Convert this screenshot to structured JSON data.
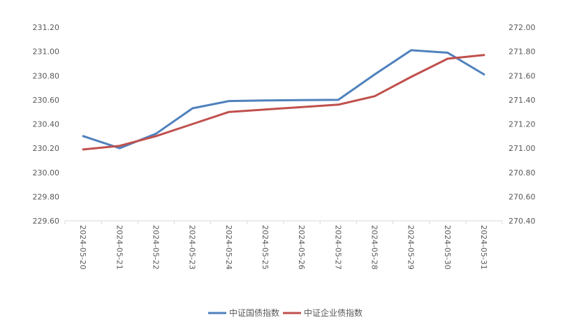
{
  "chart_data": {
    "type": "line",
    "x": [
      "2024-05-20",
      "2024-05-21",
      "2024-05-22",
      "2024-05-23",
      "2024-05-24",
      "2024-05-25",
      "2024-05-26",
      "2024-05-27",
      "2024-05-28",
      "2024-05-29",
      "2024-05-30",
      "2024-05-31"
    ],
    "series": [
      {
        "name": "中证国债指数",
        "axis": "left",
        "color": "#4F81BD",
        "values": [
          230.3,
          230.2,
          230.32,
          230.53,
          230.59,
          230.595,
          230.598,
          230.6,
          230.81,
          231.01,
          230.99,
          230.81
        ]
      },
      {
        "name": "中证企业债指数",
        "axis": "right",
        "color": "#C0504D",
        "values": [
          270.99,
          271.02,
          271.1,
          271.2,
          271.3,
          271.32,
          271.34,
          271.36,
          271.43,
          271.59,
          271.74,
          271.77
        ]
      }
    ],
    "y_left": {
      "ylim": [
        229.6,
        231.2
      ],
      "ticks": [
        "229.60",
        "229.80",
        "230.00",
        "230.20",
        "230.40",
        "230.60",
        "230.80",
        "231.00",
        "231.20"
      ]
    },
    "y_right": {
      "ylim": [
        270.4,
        272.0
      ],
      "ticks": [
        "270.40",
        "270.60",
        "270.80",
        "271.00",
        "271.20",
        "271.40",
        "271.60",
        "271.80",
        "272.00"
      ]
    },
    "grid": false,
    "legend": "bottom-center"
  }
}
